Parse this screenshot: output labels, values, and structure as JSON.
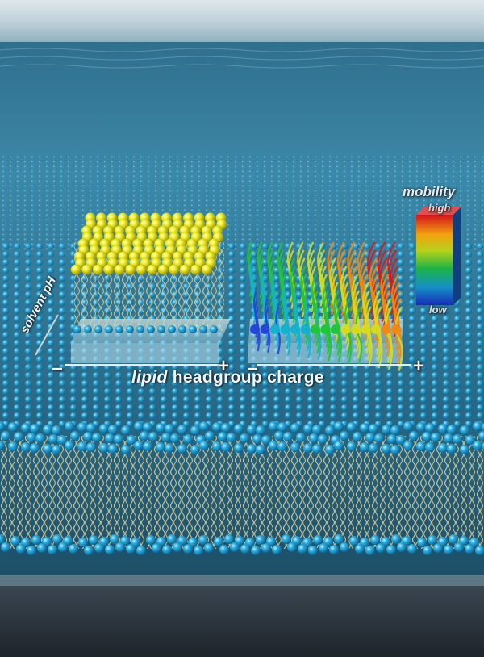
{
  "axes": {
    "x_label_italic": "lipid",
    "x_label_rest": " headgroup charge",
    "y_label": "solvent pH",
    "minus": "−",
    "plus": "+"
  },
  "legend": {
    "title": "mobility",
    "high": "high",
    "low": "low"
  },
  "colors": {
    "water_surface": "#3f88a8",
    "lipid_head_blue": "#2aa3d6",
    "lipid_head_yellow": "#e6e619",
    "lipid_tail": "#d8cfa0",
    "background_floor": "#27323c"
  }
}
